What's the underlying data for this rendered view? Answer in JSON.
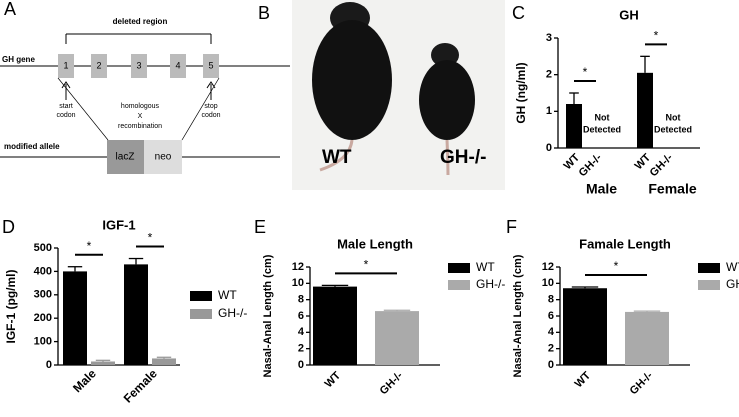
{
  "diagram": {
    "panel": "A",
    "region_label": "deleted region",
    "gene_label": "GH gene",
    "exons": [
      "1",
      "2",
      "3",
      "4",
      "5"
    ],
    "start_codon": [
      "start",
      "codon"
    ],
    "recombination": [
      "homologous",
      "X",
      "recombination"
    ],
    "stop_codon": [
      "stop",
      "codon"
    ],
    "allele_label": "modified allele",
    "cassette": [
      "lacZ",
      "neo"
    ]
  },
  "photo": {
    "panel": "B",
    "labels": [
      "WT",
      "GH-/-"
    ]
  },
  "chart_data": [
    {
      "type": "bar",
      "panel": "C",
      "title": "GH",
      "y_label": "GH (ng/ml)",
      "categories": [
        "Male",
        "Female"
      ],
      "series": [
        {
          "name": "WT",
          "color": "#000000",
          "values": [
            1.2,
            2.05
          ],
          "errors": [
            0.3,
            0.45
          ]
        },
        {
          "name": "GH-/-",
          "color": "#999999",
          "values": [
            null,
            null
          ],
          "errors": [
            null,
            null
          ]
        }
      ],
      "not_detected": [
        "Not",
        "Detected"
      ],
      "significance_label": "*",
      "ylim": [
        0,
        3
      ],
      "yticks": [
        0,
        1,
        2,
        3
      ]
    },
    {
      "type": "bar",
      "panel": "D",
      "title": "IGF-1",
      "y_label": "IGF-1 (pg/ml)",
      "categories": [
        "Male",
        "Female"
      ],
      "series": [
        {
          "name": "WT",
          "color": "#000000",
          "values": [
            400,
            430
          ],
          "errors": [
            20,
            25
          ]
        },
        {
          "name": "GH-/-",
          "color": "#999999",
          "values": [
            15,
            28
          ],
          "errors": [
            5,
            5
          ]
        }
      ],
      "significance_label": "*",
      "ylim": [
        0,
        500
      ],
      "yticks": [
        0,
        100,
        200,
        300,
        400,
        500
      ],
      "legend": "right"
    },
    {
      "type": "bar",
      "panel": "E",
      "title": "Male Length",
      "y_label": "Nasal-Anal Length (cm)",
      "categories": [
        "WT",
        "GH-/-"
      ],
      "values": [
        9.6,
        6.6
      ],
      "errors": [
        0.15,
        0.1
      ],
      "colors": [
        "#000000",
        "#aaaaaa"
      ],
      "significance_label": "*",
      "ylim": [
        0,
        12
      ],
      "yticks": [
        0,
        2,
        4,
        6,
        8,
        10,
        12
      ],
      "legend": "right"
    },
    {
      "type": "bar",
      "panel": "F",
      "title": "Famale Length",
      "y_label": "Nasal-Anal Length (cm)",
      "categories": [
        "WT",
        "GH-/-"
      ],
      "values": [
        9.4,
        6.5
      ],
      "errors": [
        0.15,
        0.1
      ],
      "colors": [
        "#000000",
        "#aaaaaa"
      ],
      "significance_label": "*",
      "ylim": [
        0,
        12
      ],
      "yticks": [
        0,
        2,
        4,
        6,
        8,
        10,
        12
      ],
      "legend": "right"
    }
  ]
}
